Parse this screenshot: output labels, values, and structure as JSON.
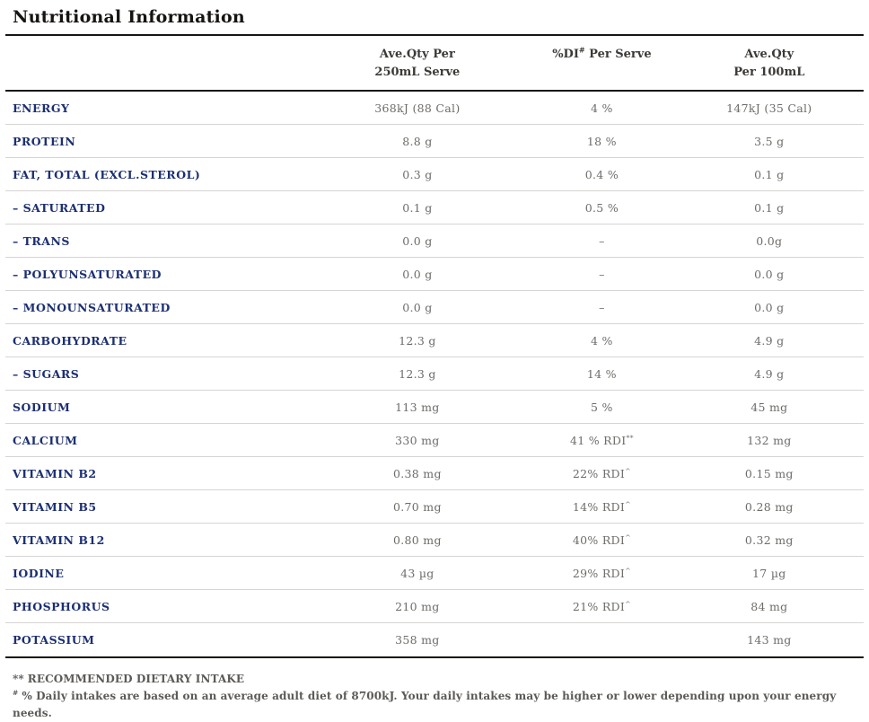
{
  "title": "Nutritional Information",
  "table": {
    "header": {
      "col_per_serve": {
        "line1": "Ave.Qty Per",
        "line2": "250mL Serve"
      },
      "col_di": {
        "pre": "%DI",
        "sup": "#",
        "post": " Per Serve"
      },
      "col_per_100ml": {
        "line1": "Ave.Qty",
        "line2": "Per 100mL"
      }
    },
    "rows": [
      {
        "label": "ENERGY",
        "per_serve": "368kJ (88 Cal)",
        "di_per_serve": {
          "text": "4 %"
        },
        "per_100ml": "147kJ (35 Cal)"
      },
      {
        "label": "PROTEIN",
        "per_serve": "8.8 g",
        "di_per_serve": {
          "text": "18 %"
        },
        "per_100ml": "3.5 g"
      },
      {
        "label": "FAT, TOTAL (EXCL.STEROL)",
        "per_serve": "0.3 g",
        "di_per_serve": {
          "text": "0.4 %"
        },
        "per_100ml": "0.1 g"
      },
      {
        "label": "– SATURATED",
        "per_serve": "0.1 g",
        "di_per_serve": {
          "text": "0.5 %"
        },
        "per_100ml": "0.1 g"
      },
      {
        "label": "– TRANS",
        "per_serve": "0.0 g",
        "di_per_serve": {
          "text": "–"
        },
        "per_100ml": "0.0g"
      },
      {
        "label": "– POLYUNSATURATED",
        "per_serve": "0.0 g",
        "di_per_serve": {
          "text": "–"
        },
        "per_100ml": "0.0 g"
      },
      {
        "label": "– MONOUNSATURATED",
        "per_serve": "0.0 g",
        "di_per_serve": {
          "text": "–"
        },
        "per_100ml": "0.0 g"
      },
      {
        "label": "CARBOHYDRATE",
        "per_serve": "12.3 g",
        "di_per_serve": {
          "text": "4 %"
        },
        "per_100ml": "4.9 g"
      },
      {
        "label": "– SUGARS",
        "per_serve": "12.3 g",
        "di_per_serve": {
          "text": "14 %"
        },
        "per_100ml": "4.9 g"
      },
      {
        "label": "SODIUM",
        "per_serve": "113 mg",
        "di_per_serve": {
          "text": "5 %"
        },
        "per_100ml": "45 mg"
      },
      {
        "label": "CALCIUM",
        "per_serve": "330 mg",
        "di_per_serve": {
          "text": "41 % RDI",
          "sup": "**"
        },
        "per_100ml": "132 mg"
      },
      {
        "label": "VITAMIN B2",
        "per_serve": "0.38 mg",
        "di_per_serve": {
          "text": "22% RDI",
          "sup": "^"
        },
        "per_100ml": "0.15 mg"
      },
      {
        "label": "VITAMIN B5",
        "per_serve": "0.70 mg",
        "di_per_serve": {
          "text": "14% RDI",
          "sup": "^"
        },
        "per_100ml": "0.28 mg"
      },
      {
        "label": "VITAMIN B12",
        "per_serve": "0.80 mg",
        "di_per_serve": {
          "text": "40% RDI",
          "sup": "^"
        },
        "per_100ml": "0.32 mg"
      },
      {
        "label": "IODINE",
        "per_serve": "43 µg",
        "di_per_serve": {
          "text": "29% RDI",
          "sup": "^"
        },
        "per_100ml": "17 µg"
      },
      {
        "label": "PHOSPHORUS",
        "per_serve": "210 mg",
        "di_per_serve": {
          "text": "21% RDI",
          "sup": "^"
        },
        "per_100ml": "84 mg"
      },
      {
        "label": "POTASSIUM",
        "per_serve": "358 mg",
        "di_per_serve": {
          "text": ""
        },
        "per_100ml": "143 mg"
      }
    ]
  },
  "footnotes": [
    {
      "marker": "**",
      "text": "RECOMMENDED DIETARY INTAKE"
    },
    {
      "marker": "#",
      "text": "% Daily intakes are based on an average adult diet of 8700kJ. Your daily intakes may be higher or lower depending upon your energy needs."
    }
  ],
  "colors": {
    "label_navy": "#1c2f72",
    "value_gray": "#6e6c69",
    "header_dark": "#3c3a37",
    "rule_dark": "#171513",
    "rule_light": "#d7d5d3",
    "footnote_gray": "#5c5a57"
  }
}
